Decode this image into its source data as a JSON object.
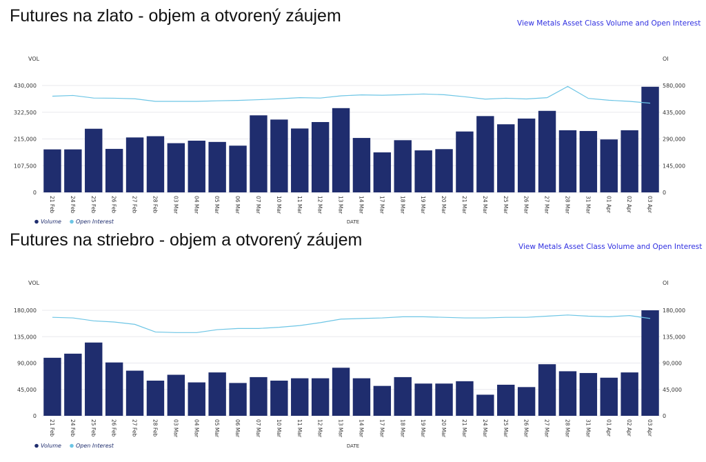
{
  "colors": {
    "volume": "#1f2d6e",
    "open_interest": "#6cc5e5",
    "link": "#2f2fe0",
    "axis_text": "#333333",
    "gridline": "#e8e8ee"
  },
  "charts": [
    {
      "title": "Futures na zlato - objem a otvorený záujem",
      "link": "View Metals Asset Class Volume and Open Interest"
    },
    {
      "title": "Futures na striebro - objem a otvorený záujem",
      "link": "View Metals Asset Class Volume and Open Interest"
    }
  ],
  "chart_data": [
    {
      "type": "bar",
      "title": "Futures na zlato - objem a otvorený záujem",
      "xlabel": "DATE",
      "ylabel": "VOL",
      "y2label": "OI",
      "categories": [
        "21 Feb",
        "24 Feb",
        "25 Feb",
        "26 Feb",
        "27 Feb",
        "28 Feb",
        "03 Mar",
        "04 Mar",
        "05 Mar",
        "06 Mar",
        "07 Mar",
        "10 Mar",
        "11 Mar",
        "12 Mar",
        "13 Mar",
        "14 Mar",
        "17 Mar",
        "18 Mar",
        "19 Mar",
        "20 Mar",
        "21 Mar",
        "24 Mar",
        "25 Mar",
        "26 Mar",
        "27 Mar",
        "28 Mar",
        "31 Mar",
        "01 Apr",
        "02 Apr",
        "03 Apr"
      ],
      "series": [
        {
          "name": "Volume",
          "type": "bar",
          "axis": "left",
          "values": [
            173000,
            173000,
            256000,
            175000,
            221000,
            226000,
            198000,
            208000,
            203000,
            188000,
            310000,
            293000,
            257000,
            283000,
            339000,
            219000,
            161000,
            210000,
            169000,
            174000,
            245000,
            307000,
            274000,
            297000,
            328000,
            250000,
            247000,
            213000,
            250000,
            425000
          ]
        },
        {
          "name": "Open Interest",
          "type": "line",
          "axis": "right",
          "values": [
            522000,
            526000,
            512000,
            511000,
            508000,
            494000,
            494000,
            494000,
            497000,
            499000,
            503000,
            508000,
            514000,
            512000,
            524000,
            529000,
            527000,
            530000,
            534000,
            530000,
            519000,
            506000,
            511000,
            507000,
            514000,
            575000,
            510000,
            500000,
            494000,
            484000
          ]
        }
      ],
      "ylim": [
        0,
        430000
      ],
      "yticks": [
        "430,000",
        "322,500",
        "215,000",
        "107,500",
        "0"
      ],
      "y2lim": [
        0,
        580000
      ],
      "y2ticks": [
        "580,000",
        "435,000",
        "290,000",
        "145,000",
        "0"
      ],
      "legend": [
        "Volume",
        "Open Interest"
      ],
      "legend_position": "bottom-left",
      "grid": true
    },
    {
      "type": "bar",
      "title": "Futures na striebro - objem a otvorený záujem",
      "xlabel": "DATE",
      "ylabel": "VOL",
      "y2label": "OI",
      "categories": [
        "21 Feb",
        "24 Feb",
        "25 Feb",
        "26 Feb",
        "27 Feb",
        "28 Feb",
        "03 Mar",
        "04 Mar",
        "05 Mar",
        "06 Mar",
        "07 Mar",
        "10 Mar",
        "11 Mar",
        "12 Mar",
        "13 Mar",
        "14 Mar",
        "17 Mar",
        "18 Mar",
        "19 Mar",
        "20 Mar",
        "21 Mar",
        "24 Mar",
        "25 Mar",
        "26 Mar",
        "27 Mar",
        "28 Mar",
        "31 Mar",
        "01 Apr",
        "02 Apr",
        "03 Apr"
      ],
      "series": [
        {
          "name": "Volume",
          "type": "bar",
          "axis": "left",
          "values": [
            99000,
            106000,
            125000,
            91000,
            77000,
            60000,
            70000,
            57000,
            74000,
            56000,
            66000,
            60000,
            64000,
            64000,
            82000,
            64000,
            51000,
            66000,
            55000,
            55000,
            59000,
            36000,
            53000,
            49000,
            88000,
            76000,
            73000,
            65000,
            74000,
            180000
          ]
        },
        {
          "name": "Open Interest",
          "type": "line",
          "axis": "right",
          "values": [
            168000,
            167000,
            162000,
            160000,
            156000,
            143000,
            142000,
            142000,
            147000,
            149000,
            149000,
            151000,
            154000,
            159000,
            165000,
            166000,
            167000,
            169000,
            169000,
            168000,
            167000,
            167000,
            168000,
            168000,
            170000,
            172000,
            170000,
            169000,
            171000,
            166000
          ]
        }
      ],
      "ylim": [
        0,
        180000
      ],
      "yticks": [
        "180,000",
        "135,000",
        "90,000",
        "45,000",
        "0"
      ],
      "y2lim": [
        0,
        180000
      ],
      "y2ticks": [
        "180,000",
        "135,000",
        "90,000",
        "45,000",
        "0"
      ],
      "legend": [
        "Volume",
        "Open Interest"
      ],
      "legend_position": "bottom-left",
      "grid": true
    }
  ]
}
